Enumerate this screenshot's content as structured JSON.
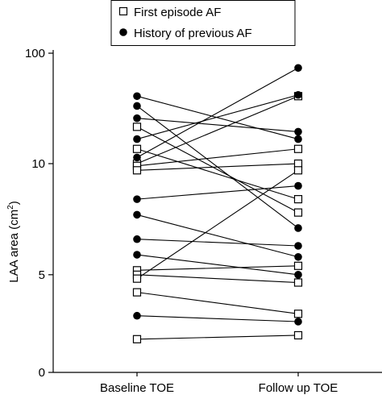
{
  "chart_data": {
    "type": "paired-dot",
    "categories": [
      "Baseline TOE",
      "Follow up TOE"
    ],
    "ylabel": {
      "text": "LAA area (cm",
      "sup": "2",
      "end": ")"
    },
    "ylim": [
      0,
      100
    ],
    "yticks": [
      0,
      5,
      10,
      100
    ],
    "yscale": "piecewise",
    "legend": "top",
    "series": [
      {
        "name": "First episode AF",
        "marker": "square",
        "color": "#000000",
        "baseline": [
          40,
          22,
          10,
          9.9,
          9.7,
          5.2,
          5.0,
          4.1,
          1.7,
          4.8
        ],
        "followup": [
          7.8,
          8.4,
          65,
          22,
          10,
          5.4,
          4.6,
          3.0,
          1.9,
          9.7
        ]
      },
      {
        "name": "History of previous AF",
        "marker": "circle",
        "color": "#000000",
        "baseline": [
          65,
          57,
          47,
          30,
          15,
          8.4,
          7.7,
          6.6,
          5.9,
          2.9
        ],
        "followup": [
          30,
          7.1,
          36,
          66,
          88,
          9.0,
          5.8,
          6.3,
          5.0,
          2.6
        ]
      }
    ]
  }
}
